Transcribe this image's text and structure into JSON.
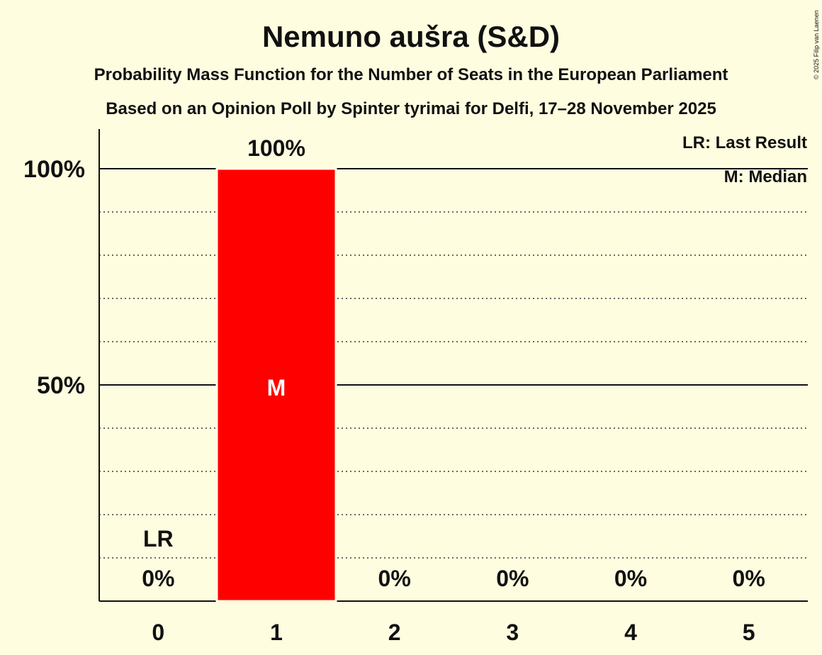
{
  "chart_data": {
    "type": "bar",
    "title": "Nemuno aušra (S&D)",
    "subtitle1": "Probability Mass Function for the Number of Seats in the European Parliament",
    "subtitle2": "Based on an Opinion Poll by Spinter tyrimai for Delfi, 17–28 November 2025",
    "copyright": "© 2025 Filip van Laenen",
    "categories": [
      "0",
      "1",
      "2",
      "3",
      "4",
      "5"
    ],
    "values": [
      0,
      100,
      0,
      0,
      0,
      0
    ],
    "value_labels": [
      "0%",
      "100%",
      "0%",
      "0%",
      "0%",
      "0%"
    ],
    "ylim": [
      0,
      100
    ],
    "yticks": [
      {
        "value": 50,
        "label": "50%"
      },
      {
        "value": 100,
        "label": "100%"
      }
    ],
    "minor_grid_step": 10,
    "bar_color": "#ff0000",
    "last_result": {
      "category": "0",
      "label": "LR"
    },
    "median": {
      "category": "1",
      "label": "M"
    },
    "legend": {
      "placement": "top-right",
      "items": [
        "LR: Last Result",
        "M: Median"
      ]
    }
  }
}
